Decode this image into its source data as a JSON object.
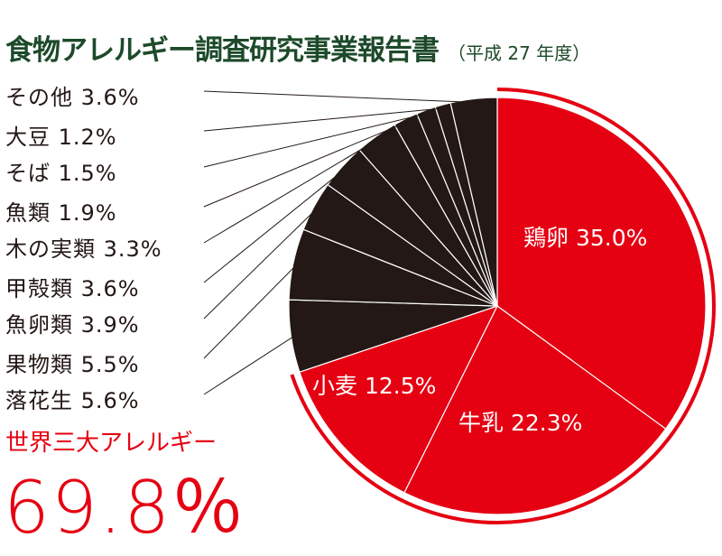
{
  "title": "食物アレルギー調査研究事業報告書",
  "subtitle": "（平成 27 年度）",
  "highlight_label": "世界三大アレルギー",
  "highlight_value": "69.8％",
  "colors": {
    "major": "#e50012",
    "other": "#231815",
    "title": "#1d4a2a"
  },
  "chart_data": {
    "type": "pie",
    "title": "食物アレルギー調査研究事業報告書（平成 27 年度）",
    "start": "top, clockwise",
    "slices": [
      {
        "label": "鶏卵",
        "value": 35.0,
        "text": "鶏卵 35.0%",
        "group": "major"
      },
      {
        "label": "牛乳",
        "value": 22.3,
        "text": "牛乳 22.3%",
        "group": "major"
      },
      {
        "label": "小麦",
        "value": 12.5,
        "text": "小麦 12.5%",
        "group": "major"
      },
      {
        "label": "落花生",
        "value": 5.6,
        "text": "落花生 5.6%",
        "group": "other"
      },
      {
        "label": "果物類",
        "value": 5.5,
        "text": "果物類 5.5%",
        "group": "other"
      },
      {
        "label": "魚卵類",
        "value": 3.9,
        "text": "魚卵類 3.9%",
        "group": "other"
      },
      {
        "label": "甲殻類",
        "value": 3.6,
        "text": "甲殻類 3.6%",
        "group": "other"
      },
      {
        "label": "木の実類",
        "value": 3.3,
        "text": "木の実類 3.3%",
        "group": "other"
      },
      {
        "label": "魚類",
        "value": 1.9,
        "text": "魚類 1.9%",
        "group": "other"
      },
      {
        "label": "そば",
        "value": 1.5,
        "text": "そば 1.5%",
        "group": "other"
      },
      {
        "label": "大豆",
        "value": 1.2,
        "text": "大豆 1.2%",
        "group": "other"
      },
      {
        "label": "その他",
        "value": 3.6,
        "text": "その他 3.6%",
        "group": "other"
      }
    ]
  }
}
